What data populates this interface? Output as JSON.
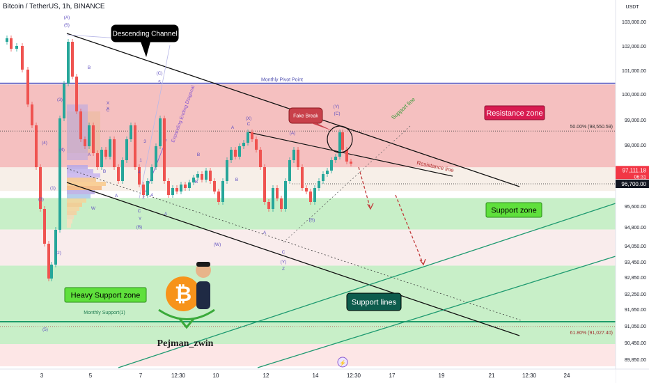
{
  "header": {
    "symbol_title": "Bitcoin / TetherUS, 1h, BINANCE",
    "currency": "USDT"
  },
  "chart_data": {
    "type": "candlestick",
    "title": "Bitcoin / TetherUS, 1h, BINANCE",
    "y_axis": {
      "currency": "USDT",
      "tick_labels": [
        "103,000.00",
        "102,000.00",
        "101,000.00",
        "100,000.00",
        "99,000.00",
        "98,000.00",
        "96,700.00",
        "95,600.00",
        "94,800.00",
        "94,050.00",
        "93,450.00",
        "92,850.00",
        "92,250.00",
        "91,650.00",
        "91,050.00",
        "90,450.00",
        "89,850.00"
      ],
      "tick_values": [
        103000,
        102000,
        101000,
        100000,
        99000,
        98000,
        96700,
        95600,
        94800,
        94050,
        93450,
        92850,
        92250,
        91650,
        91050,
        90450,
        89850
      ]
    },
    "x_axis": {
      "tick_labels": [
        "3",
        "5",
        "7",
        "12:30",
        "10",
        "12",
        "14",
        "12:30",
        "17",
        "19",
        "21",
        "12:30",
        "24"
      ]
    },
    "last_price": {
      "price": "97,111.18",
      "countdown": "06:31",
      "value": 97111.18
    },
    "level_badge": {
      "label": "96,700.00",
      "value": 96700
    },
    "fib_levels": [
      {
        "label": "50.00% (98,550.59)",
        "value": 98550.59
      },
      {
        "label": "61.80% (91,027.40)",
        "value": 91027.4
      }
    ],
    "zones": [
      {
        "name": "Resistance zone",
        "from": 97250,
        "to": 100400,
        "color": "#f5c0c0"
      },
      {
        "name": "",
        "from": 96350,
        "to": 97250,
        "color": "#f7efe8"
      },
      {
        "name": "Support zone",
        "from": 94700,
        "to": 96000,
        "color": "#c8efc8"
      },
      {
        "name": "",
        "from": 93300,
        "to": 94700,
        "color": "#f9ecec"
      },
      {
        "name": "Heavy Support zone",
        "from": 91200,
        "to": 93300,
        "color": "#c8efc8"
      },
      {
        "name": "",
        "from": 90400,
        "to": 91200,
        "color": "#c8efc8"
      },
      {
        "name": "",
        "from": 89600,
        "to": 90400,
        "color": "#fde6e6"
      }
    ],
    "horizontal_lines": [
      {
        "label": "Monthly Pivot Point",
        "value": 100450,
        "color": "#6f6fc8"
      },
      {
        "label": "Monthly Support(1)",
        "value": 91200,
        "color": "#1e9c6a"
      }
    ],
    "annotations": {
      "descending_channel": "Descending Channel",
      "fake_break": "Fake Break",
      "resistance_zone": "Resistance zone",
      "support_zone": "Support zone",
      "heavy_support_zone": "Heavy Support zone",
      "support_lines": "Support lines",
      "resistance_line": "Resistance line",
      "support_line": "Support line",
      "expanding_ending_diagonal": "Expanding Ending Diagonal",
      "author": "Pejman_zwin"
    },
    "wave_labels": [
      "(A)",
      "(5)",
      "(3)",
      "(4)",
      "(1)",
      "(3)",
      "(2)",
      "(4)",
      "(5)",
      "B",
      "X",
      "C",
      "B",
      "A",
      "W",
      "Y",
      "(B)",
      "1",
      "2",
      "3",
      "4",
      "5",
      "(C)",
      "C",
      "A",
      "A",
      "B",
      "(X)",
      "A",
      "C",
      "B",
      "(A)",
      "(Y)",
      "(C)",
      "(B)",
      "A",
      "C",
      "(W)",
      "(Y)",
      "X",
      "Z",
      "B",
      "4"
    ]
  },
  "icons": {
    "bitcoin": "bitcoin-logo-icon",
    "avatar": "cartoon-avatar-icon",
    "flash": "flash-icon"
  }
}
